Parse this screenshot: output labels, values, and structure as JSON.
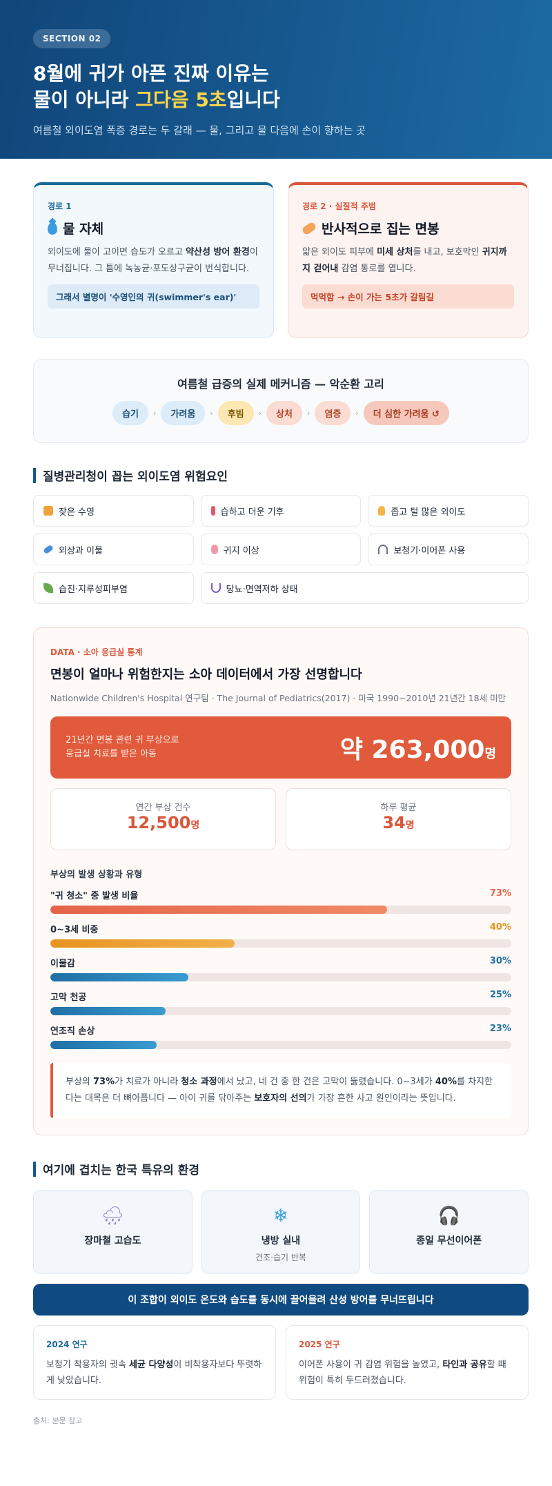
{
  "hero": {
    "section": "SECTION 02",
    "title_line1": "8월에 귀가 아픈 진짜 이유는",
    "title_line2_pre": "물이 아니라 ",
    "title_line2_hl": "그다음 5초",
    "title_line2_post": "입니다",
    "subtitle": "여름철 외이도염 폭증 경로는 두 갈래 — 물, 그리고 물 다음에 손이 향하는 곳",
    "highlight_color": "#ffd54a"
  },
  "routes": [
    {
      "tag": "경로 1",
      "icon": "water-drop-icon",
      "title": "물 자체",
      "body_pre": "외이도에 물이 고이면 습도가 오르고 ",
      "body_bold": "약산성 방어 환경",
      "body_post": "이 무너집니다. 그 틈에 녹농균·포도상구균이 번식합니다.",
      "note": "그래서 별명이 '수영인의 귀(swimmer's ear)'"
    },
    {
      "tag": "경로 2 · 실질적 주범",
      "icon": "cotton-swab-icon",
      "title": "반사적으로 집는 면봉",
      "body_pre": "얇은 외이도 피부에 ",
      "body_bold": "미세 상처",
      "body_mid": "를 내고, 보호막인 ",
      "body_bold2": "귀지까지 걷어내",
      "body_post": " 감염 통로를 엽니다.",
      "note": "먹먹함 → 손이 가는 5초가 갈림길"
    }
  ],
  "mechanism": {
    "title": "여름철 급증의 실제 메커니즘 — 악순환 고리",
    "steps": [
      "습기",
      "가려움",
      "후빔",
      "상처",
      "염증",
      "더 심한 가려움 ↺"
    ]
  },
  "risk": {
    "heading": "질병관리청이 꼽는 외이도염 위험요인",
    "items": [
      {
        "icon": "swimmer-icon",
        "label": "잦은 수영",
        "color": "#f0a23c"
      },
      {
        "icon": "thermometer-icon",
        "label": "습하고 더운 기후",
        "color": "#e0566a"
      },
      {
        "icon": "ear-icon",
        "label": "좁고 털 많은 외이도",
        "color": "#f2b74b"
      },
      {
        "icon": "bandage-icon",
        "label": "외상과 이물",
        "color": "#4a90d9"
      },
      {
        "icon": "droplet-icon",
        "label": "귀지 이상",
        "color": "#f09aa6"
      },
      {
        "icon": "headphones-icon",
        "label": "보청기·이어폰 사용",
        "color": "#6b7280"
      },
      {
        "icon": "leaf-icon",
        "label": "습진·지루성피부염",
        "color": "#6aa84f"
      },
      {
        "icon": "stethoscope-icon",
        "label": "당뇨·면역저하 상태",
        "color": "#7c5cc4"
      }
    ]
  },
  "data": {
    "tag": "DATA · 소아 응급실 통계",
    "title": "면봉이 얼마나 위험한지는 소아 데이터에서 가장 선명합니다",
    "source": "Nationwide Children's Hospital 연구팀 · The Journal of Pediatrics(2017) · 미국 1990~2010년 21년간 18세 미만",
    "big_label_line1": "21년간 면봉 관련 귀 부상으로",
    "big_label_line2": "응급실 치료를 받은 아동",
    "big_value": "약 263,000",
    "big_unit": "명",
    "stats": [
      {
        "label": "연간 부상 건수",
        "value": "12,500",
        "unit": "명"
      },
      {
        "label": "하루 평균",
        "value": "34",
        "unit": "명"
      }
    ],
    "bars_heading": "부상의 발생 상황과 유형",
    "bars": [
      {
        "label": "\"귀 청소\" 중 발생 비율",
        "pct_text": "73%",
        "value": 73,
        "color": "#e4644a",
        "color2": "#f08a66"
      },
      {
        "label": "0~3세 비중",
        "pct_text": "40%",
        "value": 40,
        "color": "#e89320",
        "color2": "#f2b04a"
      },
      {
        "label": "이물감",
        "pct_text": "30%",
        "value": 30,
        "color": "#1f6fa5",
        "color2": "#3a9bd1"
      },
      {
        "label": "고막 천공",
        "pct_text": "25%",
        "value": 25,
        "color": "#1f6fa5",
        "color2": "#3a9bd1"
      },
      {
        "label": "연조직 손상",
        "pct_text": "23%",
        "value": 23,
        "color": "#1f6fa5",
        "color2": "#3a9bd1"
      }
    ],
    "note": {
      "p1": "부상의 ",
      "b1": "73%",
      "p2": "가 치료가 아니라 ",
      "b2": "청소 과정",
      "p3": "에서 났고, 네 건 중 한 건은 고막이 뚫렸습니다. 0~3세가 ",
      "b3": "40%",
      "p4": "를 차지한다는 대목은 더 뼈아픕니다 — 아이 귀를 닦아주는 ",
      "b4": "보호자의 선의",
      "p5": "가 가장 흔한 사고 원인이라는 뜻입니다."
    }
  },
  "korea": {
    "heading": "여기에 겹치는 한국 특유의 환경",
    "items": [
      {
        "icon": "rain-cloud-icon",
        "glyph": "🌧",
        "title": "장마철 고습도",
        "sub": ""
      },
      {
        "icon": "snowflake-icon",
        "glyph": "❄",
        "title": "냉방 실내",
        "sub": "건조·습기 반복"
      },
      {
        "icon": "headphones-icon",
        "glyph": "🎧",
        "title": "종일 무선이어폰",
        "sub": ""
      }
    ],
    "banner": "이 조합이 외이도 온도와 습도를 동시에 끌어올려 산성 방어를 무너뜨립니다",
    "studies": [
      {
        "year": "2024 연구",
        "year_color": "#1a6a9a",
        "p1": "보청기 착용자의 귓속 ",
        "b1": "세균 다양성",
        "p2": "이 비착용자보다 뚜렷하게 낮았습니다.",
        "b2": "",
        "p3": ""
      },
      {
        "year": "2025 연구",
        "year_color": "#d9573a",
        "p1": "이어폰 사용이 귀 감염 위험을 높였고, ",
        "b1": "타인과 공유",
        "p2": "할 때 위험이 특히 두드러졌습니다.",
        "b2": "",
        "p3": ""
      }
    ]
  },
  "footer": {
    "source": "출처: 본문 참고"
  }
}
